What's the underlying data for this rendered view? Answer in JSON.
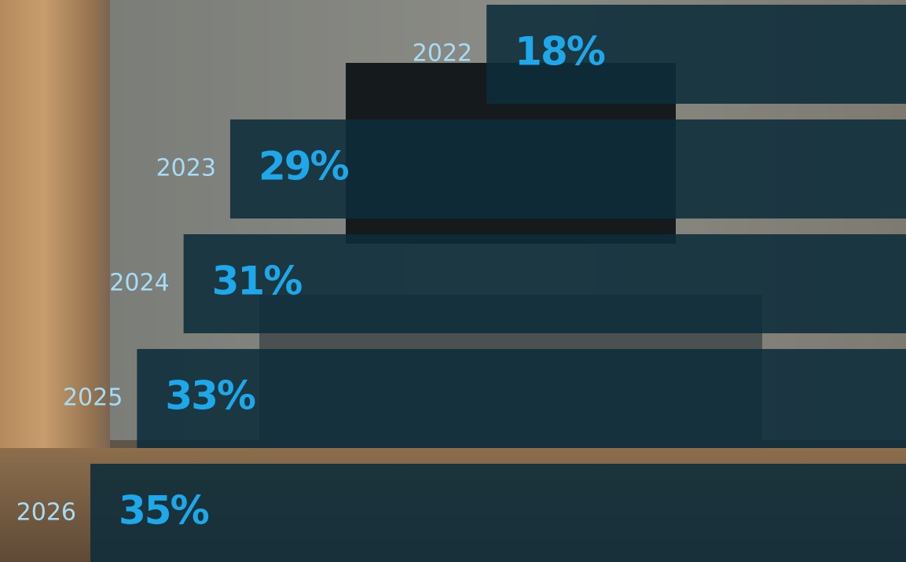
{
  "chart_data": {
    "type": "bar",
    "orientation": "horizontal",
    "categories": [
      "2022",
      "2023",
      "2024",
      "2025",
      "2026"
    ],
    "values": [
      18,
      29,
      31,
      33,
      35
    ],
    "value_labels": [
      "18%",
      "29%",
      "31%",
      "33%",
      "35%"
    ],
    "color": "#0d2c3a",
    "label_color": "#1ea8ea",
    "category_color": "#a6dcf6"
  }
}
